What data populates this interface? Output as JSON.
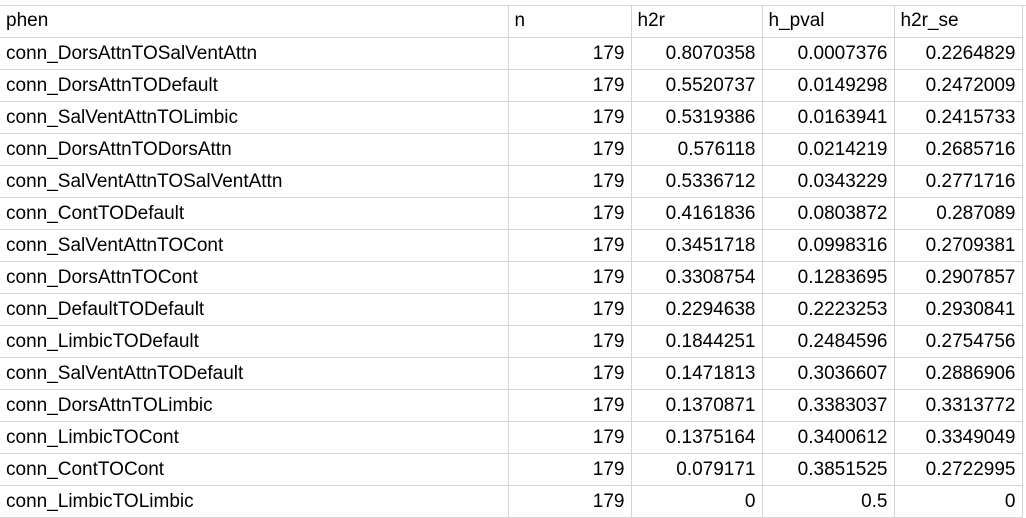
{
  "table": {
    "headers": [
      "phen",
      "n",
      "h2r",
      "h_pval",
      "h2r_se"
    ],
    "rows": [
      [
        "conn_DorsAttnTOSalVentAttn",
        "179",
        "0.8070358",
        "0.0007376",
        "0.2264829"
      ],
      [
        "conn_DorsAttnTODefault",
        "179",
        "0.5520737",
        "0.0149298",
        "0.2472009"
      ],
      [
        "conn_SalVentAttnTOLimbic",
        "179",
        "0.5319386",
        "0.0163941",
        "0.2415733"
      ],
      [
        "conn_DorsAttnTODorsAttn",
        "179",
        "0.576118",
        "0.0214219",
        "0.2685716"
      ],
      [
        "conn_SalVentAttnTOSalVentAttn",
        "179",
        "0.5336712",
        "0.0343229",
        "0.2771716"
      ],
      [
        "conn_ContTODefault",
        "179",
        "0.4161836",
        "0.0803872",
        "0.287089"
      ],
      [
        "conn_SalVentAttnTOCont",
        "179",
        "0.3451718",
        "0.0998316",
        "0.2709381"
      ],
      [
        "conn_DorsAttnTOCont",
        "179",
        "0.3308754",
        "0.1283695",
        "0.2907857"
      ],
      [
        "conn_DefaultTODefault",
        "179",
        "0.2294638",
        "0.2223253",
        "0.2930841"
      ],
      [
        "conn_LimbicTODefault",
        "179",
        "0.1844251",
        "0.2484596",
        "0.2754756"
      ],
      [
        "conn_SalVentAttnTODefault",
        "179",
        "0.1471813",
        "0.3036607",
        "0.2886906"
      ],
      [
        "conn_DorsAttnTOLimbic",
        "179",
        "0.1370871",
        "0.3383037",
        "0.3313772"
      ],
      [
        "conn_LimbicTOCont",
        "179",
        "0.1375164",
        "0.3400612",
        "0.3349049"
      ],
      [
        "conn_ContTOCont",
        "179",
        "0.079171",
        "0.3851525",
        "0.2722995"
      ],
      [
        "conn_LimbicTOLimbic",
        "179",
        "0",
        "0.5",
        "0"
      ]
    ]
  }
}
